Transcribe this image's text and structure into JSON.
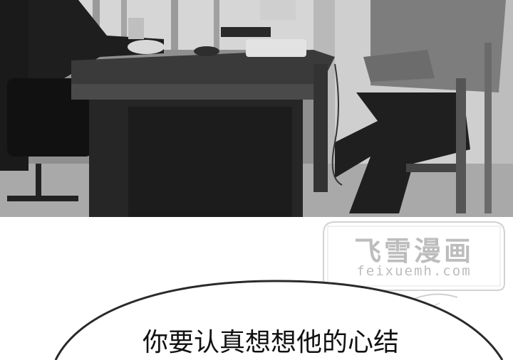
{
  "watermark": {
    "title": "飞雪漫画",
    "url": "feixuemh.com"
  },
  "speech_bubble": {
    "text": "你要认真想想他的心结"
  }
}
